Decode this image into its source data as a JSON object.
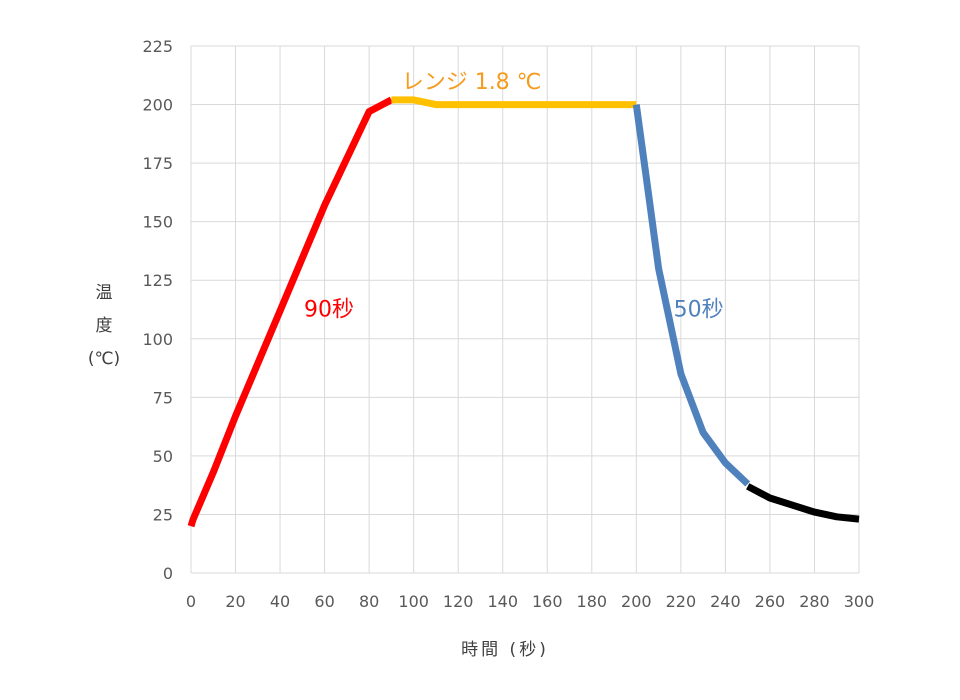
{
  "chart_data": {
    "type": "line",
    "title": "",
    "xlabel": "時間 (秒)",
    "ylabel_lines": [
      "温",
      "度",
      "(℃)"
    ],
    "xlim": [
      0,
      300
    ],
    "ylim": [
      0,
      225
    ],
    "x_ticks": [
      0,
      20,
      40,
      60,
      80,
      100,
      120,
      140,
      160,
      180,
      200,
      220,
      240,
      260,
      280,
      300
    ],
    "y_ticks": [
      0,
      25,
      50,
      75,
      100,
      125,
      150,
      175,
      200,
      225
    ],
    "grid": true,
    "legend": "none",
    "series": [
      {
        "color": "#FF0000",
        "x": [
          0,
          1,
          10,
          20,
          40,
          60,
          80,
          90
        ],
        "y": [
          20,
          23,
          43,
          67,
          112,
          157,
          197,
          202
        ]
      },
      {
        "color": "#FFC000",
        "x": [
          90,
          100,
          110,
          120,
          140,
          160,
          180,
          200
        ],
        "y": [
          202,
          202,
          200,
          200,
          200,
          200,
          200,
          200
        ]
      },
      {
        "color": "#4F81BD",
        "x": [
          200,
          205,
          210,
          220,
          230,
          240,
          250
        ],
        "y": [
          200,
          165,
          130,
          85,
          60,
          47,
          38
        ]
      },
      {
        "color": "#000000",
        "x": [
          250,
          260,
          270,
          280,
          290,
          300
        ],
        "y": [
          37,
          32,
          29,
          26,
          24,
          23
        ]
      }
    ],
    "annotations": [
      {
        "text": "90秒",
        "x": 62,
        "y": 113,
        "color": "#FF0000",
        "anchor": "middle"
      },
      {
        "text": "レンジ 1.8 ℃",
        "x": 126,
        "y": 210,
        "color": "#F59B1E",
        "anchor": "middle"
      },
      {
        "text": "50秒",
        "x": 228,
        "y": 113,
        "color": "#4F81BD",
        "anchor": "middle"
      }
    ]
  }
}
